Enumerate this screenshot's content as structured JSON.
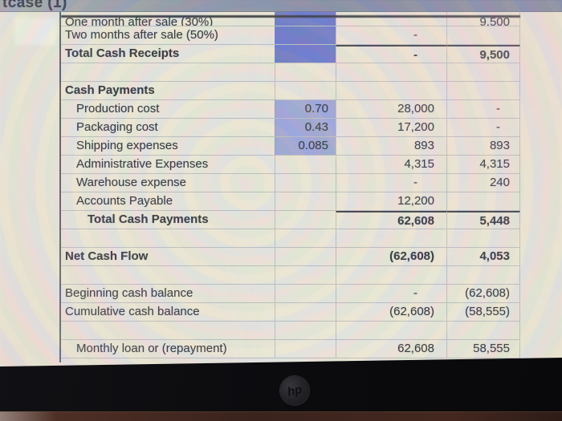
{
  "window": {
    "title": "tcase (1)"
  },
  "device": {
    "logo_text": "hp"
  },
  "colors": {
    "sheet_bg": "#e9e6da",
    "titlebar": "#76839f",
    "selection_dark": "#5f70c9",
    "selection_light": "#97a2d8",
    "text": "#232833"
  },
  "sheet": {
    "rows": [
      {
        "label": "One month after sale (30%)",
        "rate": "",
        "m1": "",
        "m2": "9,500",
        "rate_fill": "dark"
      },
      {
        "label": "Two months after sale (50%)",
        "rate": "",
        "m1": "-",
        "m2": "",
        "rate_fill": "dark"
      },
      {
        "label": "Total Cash Receipts",
        "rate": "",
        "m1": "-",
        "m2": "9,500",
        "label_bold": true,
        "values_bold": true,
        "rate_fill": "dark",
        "sum_line": true
      },
      {
        "label": "",
        "rate": "",
        "m1": "",
        "m2": ""
      },
      {
        "label": "Cash Payments",
        "rate": "",
        "m1": "",
        "m2": "",
        "label_bold": true
      },
      {
        "label": "Production cost",
        "indent": 1,
        "rate": "0.70",
        "m1": "28,000",
        "m2": "-",
        "rate_fill": "light"
      },
      {
        "label": "Packaging cost",
        "indent": 1,
        "rate": "0.43",
        "m1": "17,200",
        "m2": "-",
        "rate_fill": "light"
      },
      {
        "label": "Shipping expenses",
        "indent": 1,
        "rate": "0.085",
        "m1": "893",
        "m2": "893",
        "rate_fill": "light"
      },
      {
        "label": "Administrative Expenses",
        "indent": 1,
        "rate": "",
        "m1": "4,315",
        "m2": "4,315"
      },
      {
        "label": "Warehouse expense",
        "indent": 1,
        "rate": "",
        "m1": "-",
        "m2": "240"
      },
      {
        "label": "Accounts Payable",
        "indent": 1,
        "rate": "",
        "m1": "12,200",
        "m2": ""
      },
      {
        "label": "Total Cash Payments",
        "indent": 2,
        "rate": "",
        "m1": "62,608",
        "m2": "5,448",
        "label_bold": true,
        "values_bold": true,
        "sum_line": true
      },
      {
        "label": "",
        "rate": "",
        "m1": "",
        "m2": ""
      },
      {
        "label": "Net Cash Flow",
        "rate": "",
        "m1": "(62,608)",
        "m2": "4,053",
        "label_bold": true,
        "values_bold": true
      },
      {
        "label": "",
        "rate": "",
        "m1": "",
        "m2": ""
      },
      {
        "label": "Beginning cash balance",
        "rate": "",
        "m1": "-",
        "m2": "(62,608)"
      },
      {
        "label": "Cumulative cash balance",
        "rate": "",
        "m1": "(62,608)",
        "m2": "(58,555)"
      },
      {
        "label": "",
        "rate": "",
        "m1": "",
        "m2": ""
      },
      {
        "label": "Monthly loan or (repayment)",
        "indent": 1,
        "rate": "",
        "m1": "62,608",
        "m2": "58,555"
      }
    ]
  }
}
